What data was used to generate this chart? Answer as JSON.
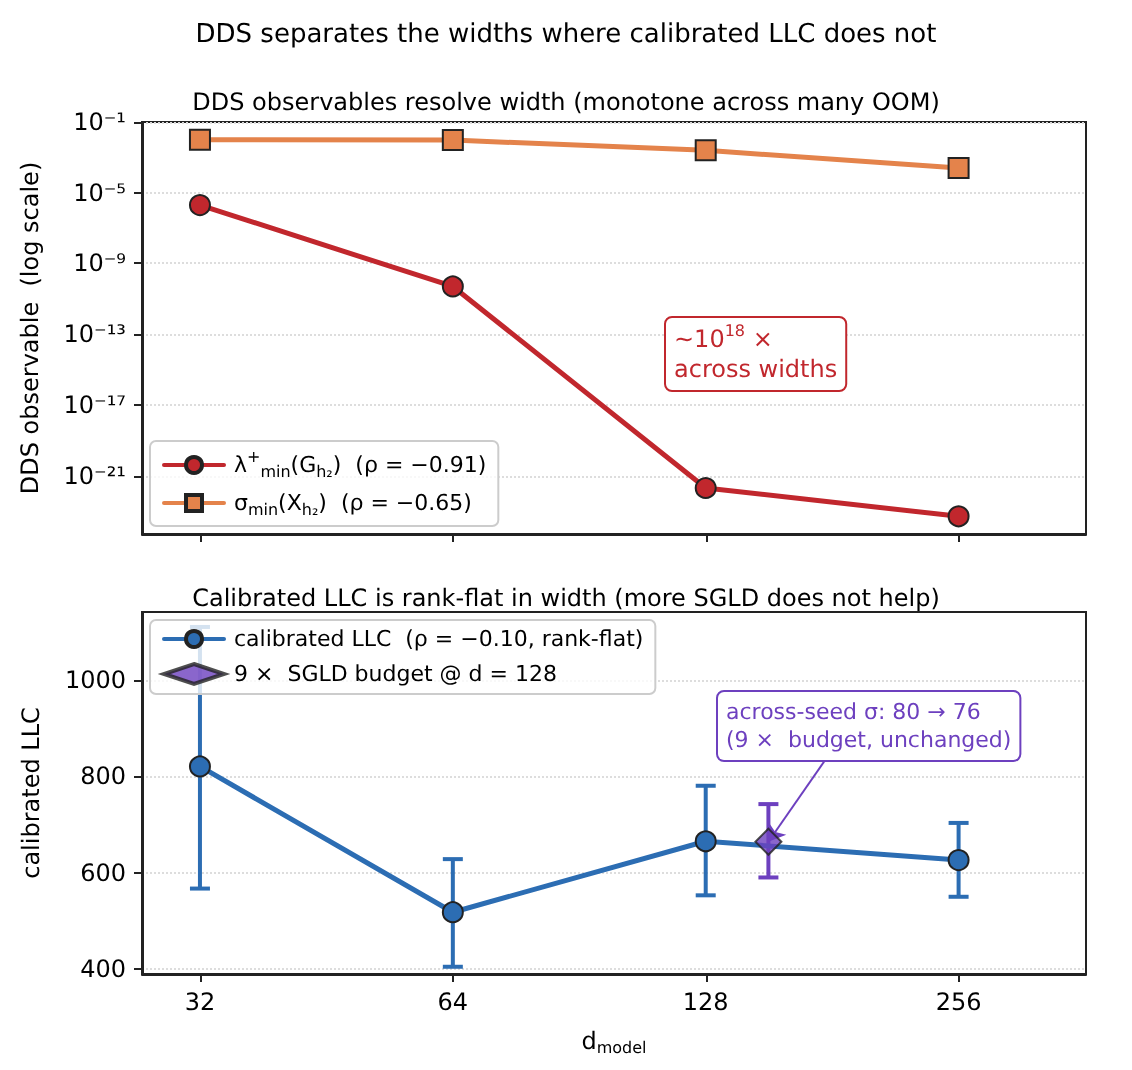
{
  "chart_data": [
    {
      "type": "line",
      "title": "DDS separates the widths where calibrated LLC does not",
      "subtitle": "DDS observables resolve width (monotone across many OOM)",
      "ylabel": "DDS observable  (log scale)",
      "x": [
        32,
        64,
        128,
        256
      ],
      "series": [
        {
          "name": "λ$^{+}$$_{min}$(G$_{h₂}$)  (ρ = −0.91)",
          "color": "#c1272d",
          "values": [
            2e-06,
            5e-11,
            2e-22,
            5e-24
          ],
          "marker": "circle"
        },
        {
          "name": "σ$_{min}$(X$_{h₂}$)  (ρ = −0.65)",
          "color": "#e4834b",
          "values": [
            0.01,
            0.0095,
            0.0025,
            0.00025
          ],
          "marker": "square"
        }
      ],
      "log": "xy",
      "xlim": [
        27.3,
        363
      ],
      "xticks": [
        32,
        64,
        128,
        256
      ],
      "ylim": [
        5e-25,
        0.1
      ],
      "yticks": [
        {
          "value": 0.1,
          "label": "10⁻¹"
        },
        {
          "value": 1e-05,
          "label": "10⁻⁵"
        },
        {
          "value": 1e-09,
          "label": "10⁻⁹"
        },
        {
          "value": 1e-13,
          "label": "10⁻¹³"
        },
        {
          "value": 1e-17,
          "label": "10⁻¹⁷"
        },
        {
          "value": 1e-21,
          "label": "10⁻²¹"
        }
      ],
      "tick_labels": "y",
      "grid": "y",
      "legend": "bottom left",
      "annotations": [
        "~10$^{18}$ ×\nacross widths"
      ]
    },
    {
      "type": "line",
      "title": "Calibrated LLC is rank-flat in width (more SGLD does not help)",
      "xlabel": "d$_{model}$",
      "ylabel": "calibrated LLC",
      "x": [
        32,
        64,
        128,
        256
      ],
      "series": [
        {
          "name": "calibrated LLC  (ρ = −0.10, rank-flat)",
          "color": "#2c6db3",
          "values": [
            820,
            518,
            665,
            626
          ],
          "errors": [
            [
              567,
              1109
            ],
            [
              405,
              628
            ],
            [
              553,
              780
            ],
            [
              550,
              703
            ]
          ],
          "marker": "circle"
        },
        {
          "name": "9 ×  SGLD budget @ d = 128",
          "type": "scatter",
          "color": "#6d40bf",
          "x": [
            152
          ],
          "values": [
            664
          ],
          "errors": [
            [
              590,
              742
            ]
          ],
          "marker": "diamond"
        }
      ],
      "log": "x",
      "xlim": [
        27.3,
        363
      ],
      "xticks": [
        32,
        64,
        128,
        256
      ],
      "ylim": [
        390,
        1140
      ],
      "yticks": [
        400,
        600,
        800,
        1000
      ],
      "grid": "y",
      "legend": "top left",
      "annotations": [
        {
          "text": "across-seed σ: 80 → 76\n(9 ×  budget, unchanged)",
          "x": 152,
          "y": 664
        }
      ]
    }
  ]
}
